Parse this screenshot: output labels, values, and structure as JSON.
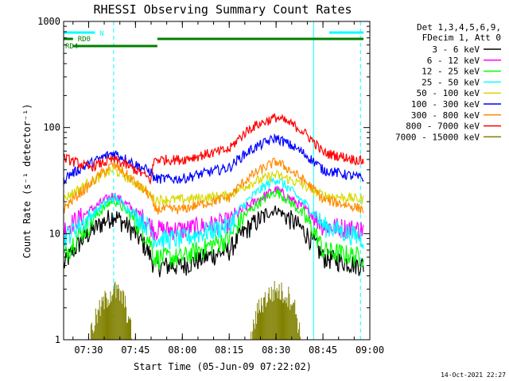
{
  "chart_data": {
    "type": "line",
    "title": "RHESSI Observing Summary Count Rates",
    "xlabel": "Start Time (05-Jun-09 07:22:02)",
    "ylabel": "Count Rate (s⁻¹ detector⁻¹)",
    "yscale": "log",
    "ylim": [
      1,
      1000
    ],
    "y_ticks": [
      {
        "value": 1,
        "label": "1"
      },
      {
        "value": 10,
        "label": "10"
      },
      {
        "value": 100,
        "label": "100"
      },
      {
        "value": 1000,
        "label": "1000"
      }
    ],
    "xlim": [
      "07:22:02",
      "09:00:00"
    ],
    "x_ticks": [
      "07:30",
      "07:45",
      "08:00",
      "08:15",
      "08:30",
      "08:45",
      "09:00"
    ],
    "legend_position": "right",
    "legend_header": [
      "Det 1,3,4,5,6,9,",
      "FDecim 1, Att 0"
    ],
    "series": [
      {
        "name": "3 - 6 keV",
        "color": "#000000",
        "x": [
          "07:22",
          "07:30",
          "07:38",
          "07:45",
          "07:50",
          "07:51",
          "08:00",
          "08:15",
          "08:22",
          "08:30",
          "08:37",
          "08:45",
          "08:58"
        ],
        "y": [
          5,
          10,
          15,
          10,
          6,
          5,
          5,
          7,
          12,
          17,
          12,
          6,
          5
        ]
      },
      {
        "name": "6 - 12 keV",
        "color": "#ff00ff",
        "x": [
          "07:22",
          "07:30",
          "07:38",
          "07:45",
          "07:50",
          "07:51",
          "08:00",
          "08:15",
          "08:22",
          "08:30",
          "08:37",
          "08:45",
          "08:58"
        ],
        "y": [
          11,
          16,
          23,
          16,
          12,
          11,
          11,
          13,
          19,
          26,
          19,
          12,
          11
        ]
      },
      {
        "name": "12 - 25 keV",
        "color": "#00ff00",
        "x": [
          "07:22",
          "07:30",
          "07:38",
          "07:45",
          "07:50",
          "07:51",
          "08:00",
          "08:15",
          "08:22",
          "08:30",
          "08:37",
          "08:45",
          "08:58"
        ],
        "y": [
          6,
          12,
          21,
          13,
          8,
          6,
          6,
          9,
          17,
          25,
          17,
          7,
          6
        ]
      },
      {
        "name": "25 - 50 keV",
        "color": "#00ffff",
        "x": [
          "07:22",
          "07:30",
          "07:38",
          "07:45",
          "07:50",
          "07:51",
          "08:00",
          "08:15",
          "08:22",
          "08:30",
          "08:37",
          "08:45",
          "08:58"
        ],
        "y": [
          9,
          14,
          22,
          15,
          11,
          9,
          9,
          12,
          22,
          33,
          22,
          12,
          9
        ]
      },
      {
        "name": "50 - 100 keV",
        "color": "#d8d800",
        "x": [
          "07:22",
          "07:30",
          "07:38",
          "07:45",
          "07:50",
          "07:51",
          "08:00",
          "08:15",
          "08:22",
          "08:30",
          "08:37",
          "08:45",
          "08:58"
        ],
        "y": [
          21,
          30,
          40,
          30,
          23,
          21,
          21,
          23,
          30,
          36,
          30,
          23,
          21
        ]
      },
      {
        "name": "100 - 300 keV",
        "color": "#0000ff",
        "x": [
          "07:22",
          "07:30",
          "07:38",
          "07:45",
          "07:50",
          "07:51",
          "08:00",
          "08:15",
          "08:22",
          "08:30",
          "08:37",
          "08:45",
          "08:58"
        ],
        "y": [
          33,
          45,
          58,
          45,
          38,
          33,
          33,
          42,
          62,
          80,
          62,
          40,
          33
        ]
      },
      {
        "name": "300 - 800 keV",
        "color": "#ff8c00",
        "x": [
          "07:22",
          "07:30",
          "07:38",
          "07:45",
          "07:50",
          "07:51",
          "08:00",
          "08:15",
          "08:22",
          "08:30",
          "08:37",
          "08:45",
          "08:58"
        ],
        "y": [
          17,
          28,
          45,
          30,
          22,
          17,
          17,
          22,
          35,
          48,
          35,
          21,
          17
        ]
      },
      {
        "name": "800 - 7000 keV",
        "color": "#ff0000",
        "x": [
          "07:22",
          "07:30",
          "07:38",
          "07:45",
          "07:50",
          "07:51",
          "08:00",
          "08:15",
          "08:22",
          "08:30",
          "08:37",
          "08:45",
          "08:58"
        ],
        "y": [
          52,
          42,
          50,
          40,
          32,
          50,
          50,
          62,
          100,
          125,
          100,
          58,
          48
        ]
      },
      {
        "name": "7000 - 15000 keV",
        "color": "#808000",
        "x": [
          "07:30",
          "07:35",
          "07:38",
          "07:41",
          "07:44",
          "08:22",
          "08:25",
          "08:30",
          "08:35",
          "08:38"
        ],
        "y": [
          1,
          2.3,
          3,
          2.5,
          1,
          1,
          2.2,
          3,
          2.5,
          1
        ]
      }
    ],
    "flags": [
      {
        "label": "N",
        "color": "#00ffff",
        "segments": [
          [
            "07:22",
            "07:32"
          ],
          [
            "08:47",
            "08:58"
          ]
        ]
      },
      {
        "label": "RD0",
        "color": "#008000",
        "segments": [
          [
            "07:22",
            "07:25"
          ],
          [
            "07:52",
            "08:58"
          ]
        ]
      },
      {
        "label": "RD4",
        "color": "#008000",
        "segments": [
          [
            "07:25",
            "07:52"
          ]
        ]
      }
    ],
    "markers": {
      "solid_cyan": [
        "07:22",
        "08:42"
      ],
      "dashed_cyan": [
        "07:38",
        "08:57"
      ]
    }
  },
  "footer": {
    "timestamp": "14-Oct-2021 22:27"
  }
}
